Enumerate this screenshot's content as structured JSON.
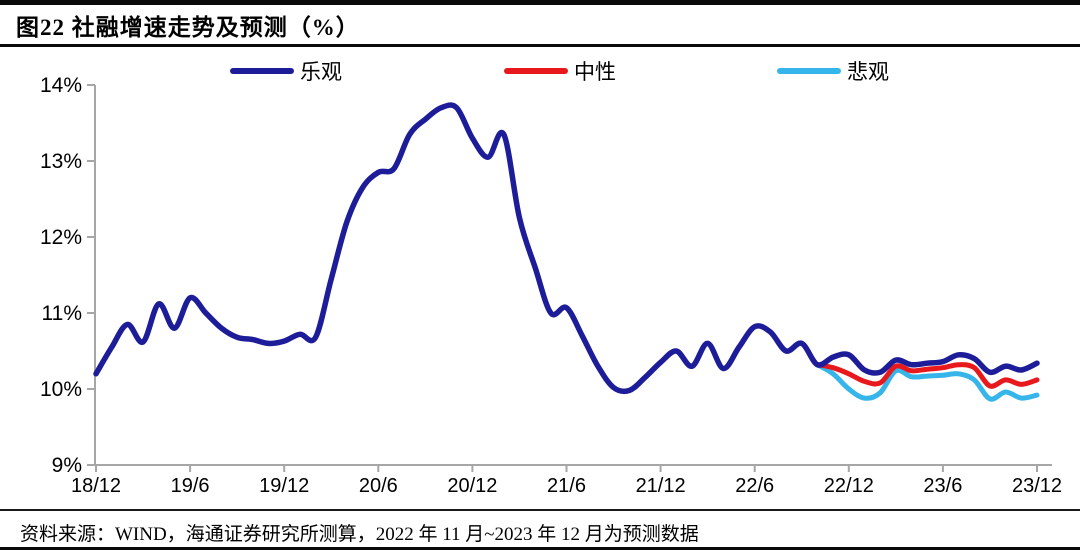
{
  "header": {
    "title": "图22 社融增速走势及预测（%）"
  },
  "footer": {
    "source_note": "资料来源：WIND，海通证券研究所测算，2022 年 11 月~2023 年 12 月为预测数据"
  },
  "chart_data": {
    "type": "line",
    "title": "社融增速走势及预测（%）",
    "xlabel": "",
    "ylabel": "",
    "ylim": [
      9,
      14
    ],
    "y_ticks": [
      14,
      13,
      12,
      11,
      10,
      9
    ],
    "y_tick_suffix": "%",
    "x_start": "2018/12",
    "x_frequency": "monthly",
    "x_tick_labels": [
      "18/12",
      "19/6",
      "19/12",
      "20/6",
      "20/12",
      "21/6",
      "21/12",
      "22/6",
      "22/12",
      "23/6",
      "23/12"
    ],
    "forecast_start": "2022/11",
    "grid": false,
    "legend_position": "top",
    "axis_color": "#a6a6a6",
    "label_color": "#000000",
    "series": [
      {
        "name": "乐观",
        "color": "#1d1d99",
        "start_index": 0,
        "values": [
          10.2,
          10.55,
          10.85,
          10.62,
          11.12,
          10.8,
          11.2,
          11.0,
          10.8,
          10.68,
          10.65,
          10.6,
          10.63,
          10.72,
          10.68,
          11.45,
          12.2,
          12.65,
          12.85,
          12.9,
          13.35,
          13.55,
          13.7,
          13.7,
          13.3,
          13.05,
          13.35,
          12.25,
          11.6,
          11.0,
          11.07,
          10.7,
          10.3,
          10.02,
          9.98,
          10.15,
          10.35,
          10.5,
          10.3,
          10.6,
          10.27,
          10.55,
          10.82,
          10.75,
          10.5,
          10.6,
          10.32,
          10.42,
          10.45,
          10.25,
          10.22,
          10.38,
          10.32,
          10.34,
          10.36,
          10.45,
          10.4,
          10.22,
          10.3,
          10.25,
          10.34
        ]
      },
      {
        "name": "中性",
        "color": "#e8191c",
        "start_index": 46,
        "values": [
          10.32,
          10.28,
          10.2,
          10.1,
          10.08,
          10.3,
          10.24,
          10.26,
          10.28,
          10.32,
          10.28,
          10.04,
          10.12,
          10.06,
          10.12
        ]
      },
      {
        "name": "悲观",
        "color": "#35b5ea",
        "start_index": 46,
        "values": [
          10.32,
          10.2,
          10.0,
          9.88,
          9.95,
          10.24,
          10.16,
          10.17,
          10.18,
          10.2,
          10.12,
          9.87,
          9.96,
          9.88,
          9.92
        ]
      }
    ]
  }
}
